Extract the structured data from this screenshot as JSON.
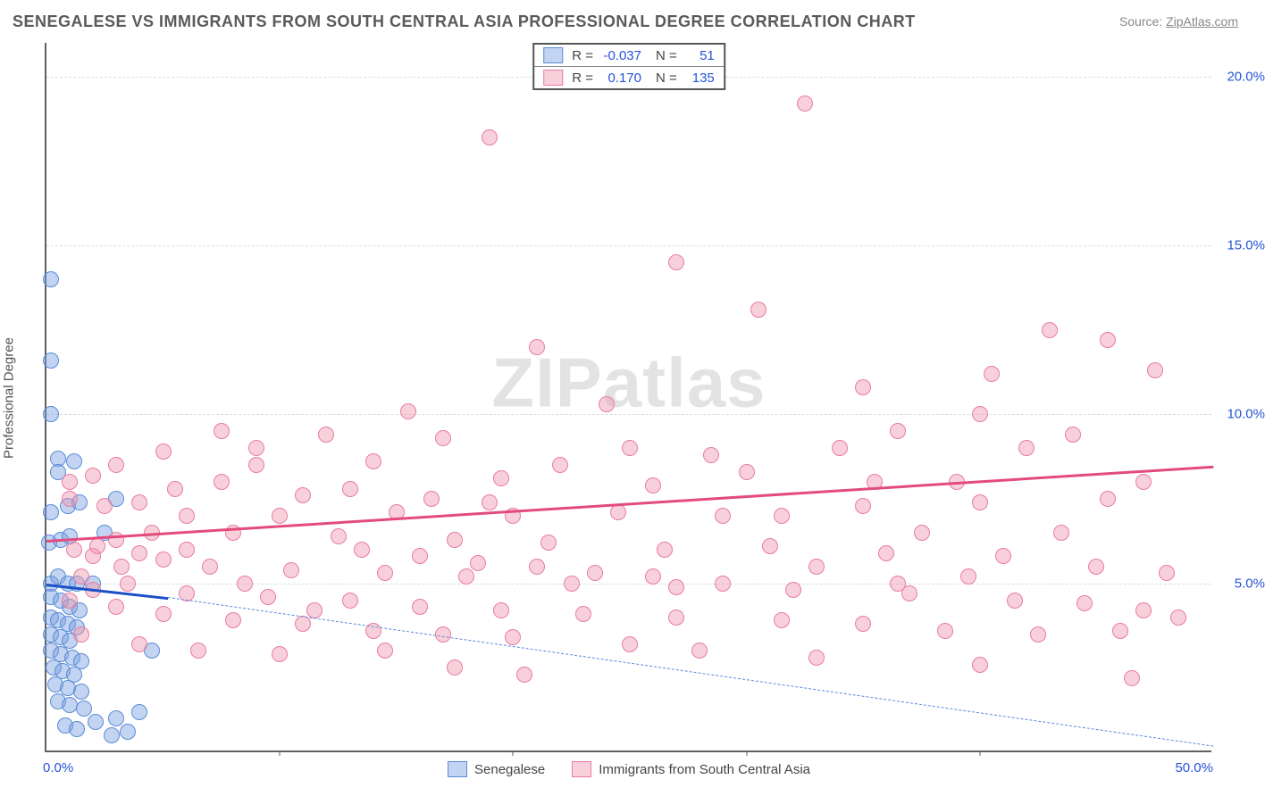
{
  "title": "SENEGALESE VS IMMIGRANTS FROM SOUTH CENTRAL ASIA PROFESSIONAL DEGREE CORRELATION CHART",
  "source_label": "Source:",
  "source_name": "ZipAtlas.com",
  "watermark_zip": "ZIP",
  "watermark_atlas": "atlas",
  "ylabel": "Professional Degree",
  "chart": {
    "type": "scatter",
    "xlim": [
      0,
      50
    ],
    "ylim": [
      0,
      21
    ],
    "x_ticks": [
      0,
      10,
      20,
      30,
      40,
      50
    ],
    "x_tick_labels": [
      "0.0%",
      "",
      "",
      "",
      "",
      "50.0%"
    ],
    "y_ticks": [
      5,
      10,
      15,
      20
    ],
    "y_tick_labels": [
      "5.0%",
      "10.0%",
      "15.0%",
      "20.0%"
    ],
    "grid_color": "#dcdcdc",
    "axis_color": "#606060",
    "tick_label_color": "#2553d6",
    "tick_fontsize": 15,
    "background_color": "#ffffff",
    "marker_radius": 9,
    "marker_opacity": 0.55,
    "series": [
      {
        "name": "Senegalese",
        "color_fill": "rgba(120,160,225,0.45)",
        "color_stroke": "#5a8bd6",
        "trend_color": "#1b4fc7",
        "trend": {
          "x1": 0,
          "y1": 5.0,
          "x2": 5.2,
          "y2": 4.6
        },
        "trend_dash": {
          "x1": 5.2,
          "y1": 4.6,
          "x2": 50,
          "y2": 0.2
        },
        "r": "-0.037",
        "n": "51",
        "points": [
          [
            0.2,
            14.0
          ],
          [
            0.2,
            11.6
          ],
          [
            0.2,
            10.0
          ],
          [
            0.5,
            8.7
          ],
          [
            1.2,
            8.6
          ],
          [
            0.5,
            8.3
          ],
          [
            0.2,
            7.1
          ],
          [
            0.9,
            7.3
          ],
          [
            1.4,
            7.4
          ],
          [
            0.1,
            6.2
          ],
          [
            0.6,
            6.3
          ],
          [
            1.0,
            6.4
          ],
          [
            0.2,
            5.0
          ],
          [
            0.5,
            5.2
          ],
          [
            0.9,
            5.0
          ],
          [
            1.3,
            5.0
          ],
          [
            0.2,
            4.6
          ],
          [
            0.6,
            4.5
          ],
          [
            1.0,
            4.3
          ],
          [
            1.4,
            4.2
          ],
          [
            0.2,
            4.0
          ],
          [
            0.5,
            3.9
          ],
          [
            0.9,
            3.8
          ],
          [
            1.3,
            3.7
          ],
          [
            0.2,
            3.5
          ],
          [
            0.6,
            3.4
          ],
          [
            1.0,
            3.3
          ],
          [
            0.2,
            3.0
          ],
          [
            0.6,
            2.9
          ],
          [
            1.1,
            2.8
          ],
          [
            1.5,
            2.7
          ],
          [
            0.3,
            2.5
          ],
          [
            0.7,
            2.4
          ],
          [
            1.2,
            2.3
          ],
          [
            0.4,
            2.0
          ],
          [
            0.9,
            1.9
          ],
          [
            1.5,
            1.8
          ],
          [
            0.5,
            1.5
          ],
          [
            1.0,
            1.4
          ],
          [
            1.6,
            1.3
          ],
          [
            2.1,
            0.9
          ],
          [
            3.0,
            1.0
          ],
          [
            4.0,
            1.2
          ],
          [
            4.5,
            3.0
          ],
          [
            3.5,
            0.6
          ],
          [
            2.8,
            0.5
          ],
          [
            0.8,
            0.8
          ],
          [
            1.3,
            0.7
          ],
          [
            2.0,
            5.0
          ],
          [
            2.5,
            6.5
          ],
          [
            3.0,
            7.5
          ]
        ]
      },
      {
        "name": "Immigrants from South Central Asia",
        "color_fill": "rgba(240,150,175,0.45)",
        "color_stroke": "#e87ca0",
        "trend_color": "#e24b7c",
        "trend": {
          "x1": 0,
          "y1": 6.3,
          "x2": 50,
          "y2": 8.5
        },
        "r": "0.170",
        "n": "135",
        "points": [
          [
            32.5,
            19.2
          ],
          [
            19.0,
            18.2
          ],
          [
            27.0,
            14.5
          ],
          [
            30.5,
            13.1
          ],
          [
            21.0,
            12.0
          ],
          [
            43.0,
            12.5
          ],
          [
            45.5,
            12.2
          ],
          [
            40.5,
            11.2
          ],
          [
            47.5,
            11.3
          ],
          [
            35.0,
            10.8
          ],
          [
            15.5,
            10.1
          ],
          [
            24.0,
            10.3
          ],
          [
            12.0,
            9.4
          ],
          [
            17.0,
            9.3
          ],
          [
            36.5,
            9.5
          ],
          [
            44.0,
            9.4
          ],
          [
            42.0,
            9.0
          ],
          [
            7.5,
            9.5
          ],
          [
            5.0,
            8.9
          ],
          [
            9.0,
            8.5
          ],
          [
            14.0,
            8.6
          ],
          [
            19.5,
            8.1
          ],
          [
            26.0,
            7.9
          ],
          [
            30.0,
            8.3
          ],
          [
            35.5,
            8.0
          ],
          [
            39.0,
            8.0
          ],
          [
            47.0,
            8.0
          ],
          [
            40.0,
            7.4
          ],
          [
            35.0,
            7.3
          ],
          [
            29.0,
            7.0
          ],
          [
            24.5,
            7.1
          ],
          [
            20.0,
            7.0
          ],
          [
            15.0,
            7.1
          ],
          [
            10.0,
            7.0
          ],
          [
            6.0,
            7.0
          ],
          [
            3.0,
            6.3
          ],
          [
            4.5,
            6.5
          ],
          [
            8.0,
            6.5
          ],
          [
            12.5,
            6.4
          ],
          [
            17.5,
            6.3
          ],
          [
            21.5,
            6.2
          ],
          [
            26.5,
            6.0
          ],
          [
            31.0,
            6.1
          ],
          [
            36.0,
            5.9
          ],
          [
            41.0,
            5.8
          ],
          [
            45.0,
            5.5
          ],
          [
            48.0,
            5.3
          ],
          [
            2.0,
            5.8
          ],
          [
            5.0,
            5.7
          ],
          [
            7.0,
            5.5
          ],
          [
            10.5,
            5.4
          ],
          [
            14.5,
            5.3
          ],
          [
            18.0,
            5.2
          ],
          [
            22.5,
            5.0
          ],
          [
            27.0,
            4.9
          ],
          [
            32.0,
            4.8
          ],
          [
            37.0,
            4.7
          ],
          [
            41.5,
            4.5
          ],
          [
            44.5,
            4.4
          ],
          [
            47.0,
            4.2
          ],
          [
            48.5,
            4.0
          ],
          [
            1.5,
            5.2
          ],
          [
            3.5,
            5.0
          ],
          [
            6.0,
            4.7
          ],
          [
            9.5,
            4.6
          ],
          [
            13.0,
            4.5
          ],
          [
            16.0,
            4.3
          ],
          [
            19.5,
            4.2
          ],
          [
            23.0,
            4.1
          ],
          [
            27.0,
            4.0
          ],
          [
            31.5,
            3.9
          ],
          [
            35.0,
            3.8
          ],
          [
            38.5,
            3.6
          ],
          [
            42.5,
            3.5
          ],
          [
            1.0,
            4.5
          ],
          [
            3.0,
            4.3
          ],
          [
            5.0,
            4.1
          ],
          [
            8.0,
            3.9
          ],
          [
            11.0,
            3.8
          ],
          [
            14.0,
            3.6
          ],
          [
            17.0,
            3.5
          ],
          [
            20.0,
            3.4
          ],
          [
            25.0,
            3.2
          ],
          [
            28.0,
            3.0
          ],
          [
            33.0,
            2.8
          ],
          [
            40.0,
            2.6
          ],
          [
            46.0,
            3.6
          ],
          [
            46.5,
            2.2
          ],
          [
            1.5,
            3.5
          ],
          [
            4.0,
            3.2
          ],
          [
            6.5,
            3.0
          ],
          [
            10.0,
            2.9
          ],
          [
            1.0,
            7.5
          ],
          [
            2.5,
            7.3
          ],
          [
            4.0,
            7.4
          ],
          [
            1.2,
            6.0
          ],
          [
            2.2,
            6.1
          ],
          [
            3.2,
            5.5
          ],
          [
            1.0,
            8.0
          ],
          [
            2.0,
            8.2
          ],
          [
            3.0,
            8.5
          ],
          [
            5.5,
            7.8
          ],
          [
            7.5,
            8.0
          ],
          [
            9.0,
            9.0
          ],
          [
            11.0,
            7.6
          ],
          [
            13.0,
            7.8
          ],
          [
            16.5,
            7.5
          ],
          [
            19.0,
            7.4
          ],
          [
            22.0,
            8.5
          ],
          [
            25.0,
            9.0
          ],
          [
            28.5,
            8.8
          ],
          [
            31.5,
            7.0
          ],
          [
            34.0,
            9.0
          ],
          [
            37.5,
            6.5
          ],
          [
            40.0,
            10.0
          ],
          [
            16.0,
            5.8
          ],
          [
            18.5,
            5.6
          ],
          [
            21.0,
            5.5
          ],
          [
            23.5,
            5.3
          ],
          [
            26.0,
            5.2
          ],
          [
            29.0,
            5.0
          ],
          [
            33.0,
            5.5
          ],
          [
            36.5,
            5.0
          ],
          [
            39.5,
            5.2
          ],
          [
            43.5,
            6.5
          ],
          [
            13.5,
            6.0
          ],
          [
            8.5,
            5.0
          ],
          [
            6.0,
            6.0
          ],
          [
            4.0,
            5.9
          ],
          [
            2.0,
            4.8
          ],
          [
            11.5,
            4.2
          ],
          [
            14.5,
            3.0
          ],
          [
            17.5,
            2.5
          ],
          [
            20.5,
            2.3
          ],
          [
            45.5,
            7.5
          ]
        ]
      }
    ]
  },
  "legend_bottom": [
    {
      "label": "Senegalese",
      "fill": "rgba(120,160,225,0.45)",
      "stroke": "#5a8bd6"
    },
    {
      "label": "Immigrants from South Central Asia",
      "fill": "rgba(240,150,175,0.45)",
      "stroke": "#e87ca0"
    }
  ],
  "legend_top": {
    "r_label": "R =",
    "n_label": "N ="
  }
}
